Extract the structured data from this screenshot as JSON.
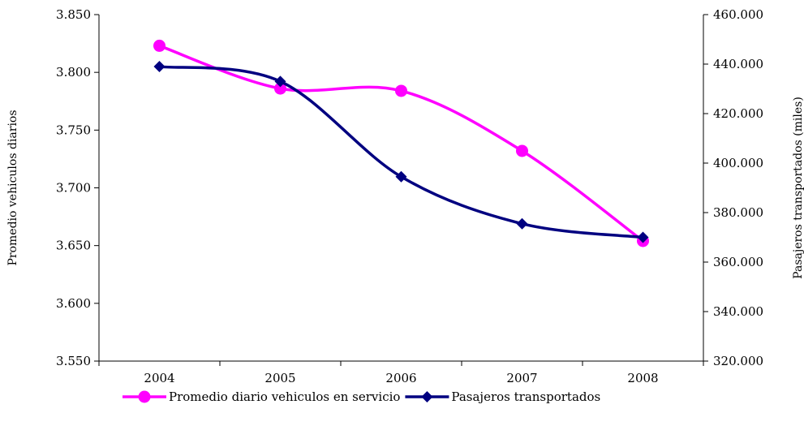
{
  "chart_data": {
    "type": "line",
    "categories": [
      "2004",
      "2005",
      "2006",
      "2007",
      "2008"
    ],
    "series": [
      {
        "name": "Promedio diario vehiculos en servicio",
        "axis": "left",
        "color": "#FF00FF",
        "marker": "circle",
        "values": [
          3823,
          3786,
          3784,
          3732,
          3654
        ]
      },
      {
        "name": "Pasajeros transportados",
        "axis": "right",
        "color": "#000080",
        "marker": "diamond",
        "values": [
          439000,
          433000,
          394500,
          375500,
          370000
        ]
      }
    ],
    "y_left": {
      "label": "Promedio vehiculos diarios",
      "lim": [
        3550,
        3850
      ],
      "ticks": [
        "3.550",
        "3.600",
        "3.650",
        "3.700",
        "3.750",
        "3.800",
        "3.850"
      ]
    },
    "y_right": {
      "label": "Pasajeros transportados (miles)",
      "lim": [
        320000,
        460000
      ],
      "ticks": [
        "320.000",
        "340.000",
        "360.000",
        "380.000",
        "400.000",
        "420.000",
        "440.000",
        "460.000"
      ]
    },
    "grid": false,
    "legend_position": "bottom",
    "smooth": true
  }
}
